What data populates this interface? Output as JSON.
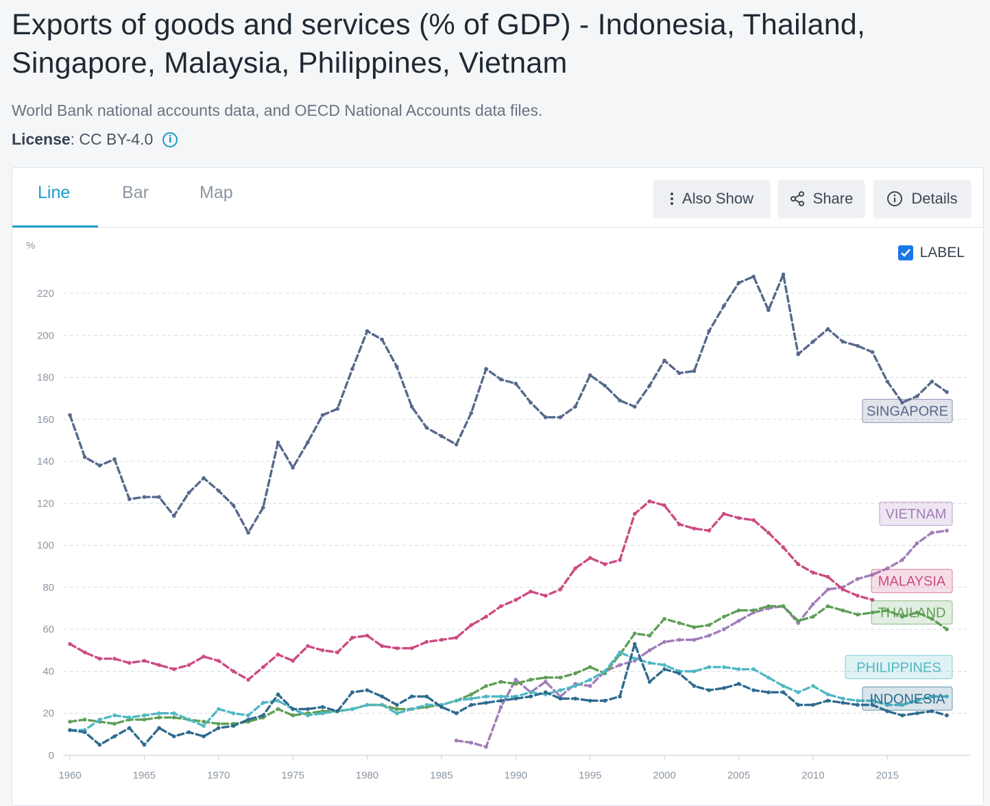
{
  "header": {
    "title": "Exports of goods and services (% of GDP) - Indonesia, Thailand, Singapore, Malaysia, Philippines, Vietnam",
    "source": "World Bank national accounts data, and OECD National Accounts data files.",
    "license_label": "License",
    "license_value": " : CC BY-4.0",
    "info_icon": "info-icon"
  },
  "tabs": [
    {
      "label": "Line",
      "active": true
    },
    {
      "label": "Bar",
      "active": false
    },
    {
      "label": "Map",
      "active": false
    }
  ],
  "toolbar": {
    "also_show": "Also Show",
    "share": "Share",
    "details": "Details",
    "also_show_icon": "vertical-dots-icon",
    "share_icon": "share-icon",
    "details_icon": "info-icon"
  },
  "label_toggle": {
    "label": "LABEL",
    "checked": true
  },
  "colors": {
    "accent": "#1a9bc7",
    "grid": "#d6dbe0",
    "singapore": "#56688c",
    "vietnam": "#a07cb8",
    "malaysia": "#cc4a82",
    "thailand": "#5e9e56",
    "philippines": "#4fb8c4",
    "indonesia": "#2e6b8e"
  },
  "chart_data": {
    "type": "line",
    "title": "",
    "xlabel": "",
    "ylabel": "%",
    "xlim": [
      1960,
      2019
    ],
    "ylim": [
      0,
      230
    ],
    "yticks": [
      0,
      20,
      40,
      60,
      80,
      100,
      120,
      140,
      160,
      180,
      200,
      220
    ],
    "xticks": [
      1960,
      1965,
      1970,
      1975,
      1980,
      1985,
      1990,
      1995,
      2000,
      2005,
      2010,
      2015
    ],
    "grid": true,
    "legend": "inline labels at right",
    "series": [
      {
        "name": "SINGAPORE",
        "color": "#56688c",
        "label_y": 164,
        "x_start": 1960,
        "values": [
          162,
          142,
          138,
          141,
          122,
          123,
          123,
          114,
          125,
          132,
          126,
          119,
          106,
          118,
          149,
          137,
          149,
          162,
          165,
          184,
          202,
          198,
          185,
          166,
          156,
          152,
          148,
          163,
          184,
          179,
          177,
          168,
          161,
          161,
          166,
          181,
          176,
          169,
          166,
          176,
          188,
          182,
          183,
          202,
          214,
          225,
          228,
          212,
          229,
          191,
          197,
          203,
          197,
          195,
          192,
          178,
          168,
          171,
          178,
          173
        ]
      },
      {
        "name": "VIETNAM",
        "color": "#a07cb8",
        "label_y": 115,
        "x_start": 1986,
        "values": [
          7,
          6,
          4,
          23,
          36,
          30,
          35,
          28,
          34,
          33,
          40,
          43,
          45,
          50,
          54,
          55,
          55,
          57,
          60,
          64,
          68,
          70,
          71,
          63,
          72,
          79,
          80,
          84,
          86,
          89,
          93,
          101,
          106,
          107
        ]
      },
      {
        "name": "MALAYSIA",
        "color": "#cc4a82",
        "label_y": 83,
        "x_start": 1960,
        "values": [
          53,
          49,
          46,
          46,
          44,
          45,
          43,
          41,
          43,
          47,
          45,
          40,
          36,
          42,
          48,
          45,
          52,
          50,
          49,
          56,
          57,
          52,
          51,
          51,
          54,
          55,
          56,
          62,
          66,
          71,
          74,
          78,
          76,
          79,
          89,
          94,
          91,
          93,
          115,
          121,
          119,
          110,
          108,
          107,
          115,
          113,
          112,
          106,
          99,
          91,
          87,
          85,
          79,
          76,
          74
        ]
      },
      {
        "name": "THAILAND",
        "color": "#5e9e56",
        "label_y": 68,
        "x_start": 1960,
        "values": [
          16,
          17,
          16,
          15,
          17,
          17,
          18,
          18,
          17,
          16,
          15,
          15,
          16,
          18,
          22,
          19,
          20,
          21,
          21,
          22,
          24,
          24,
          22,
          22,
          23,
          24,
          26,
          29,
          33,
          35,
          34,
          36,
          37,
          37,
          39,
          42,
          39,
          48,
          58,
          57,
          65,
          63,
          61,
          62,
          66,
          69,
          69,
          71,
          71,
          64,
          66,
          71,
          69,
          67,
          68,
          69,
          66,
          68,
          65,
          60
        ]
      },
      {
        "name": "PHILIPPINES",
        "color": "#4fb8c4",
        "label_y": 42,
        "x_start": 1960,
        "values": [
          12,
          12,
          17,
          19,
          18,
          19,
          20,
          20,
          17,
          14,
          22,
          20,
          19,
          25,
          26,
          22,
          19,
          20,
          21,
          22,
          24,
          24,
          20,
          22,
          24,
          24,
          26,
          27,
          28,
          28,
          28,
          30,
          29,
          31,
          33,
          36,
          40,
          49,
          46,
          44,
          43,
          40,
          40,
          42,
          42,
          41,
          41,
          37,
          33,
          30,
          33,
          29,
          27,
          26,
          26,
          24,
          24,
          26,
          28,
          28
        ]
      },
      {
        "name": "INDONESIA",
        "color": "#2e6b8e",
        "label_y": 27,
        "x_start": 1960,
        "values": [
          12,
          11,
          5,
          9,
          13,
          5,
          13,
          9,
          11,
          9,
          13,
          14,
          17,
          19,
          29,
          22,
          22,
          23,
          21,
          30,
          31,
          28,
          24,
          28,
          28,
          23,
          20,
          24,
          25,
          26,
          27,
          28,
          30,
          27,
          27,
          26,
          26,
          28,
          53,
          35,
          41,
          39,
          33,
          31,
          32,
          34,
          31,
          30,
          30,
          24,
          24,
          26,
          25,
          24,
          24,
          21,
          19,
          20,
          21,
          19
        ]
      }
    ]
  }
}
